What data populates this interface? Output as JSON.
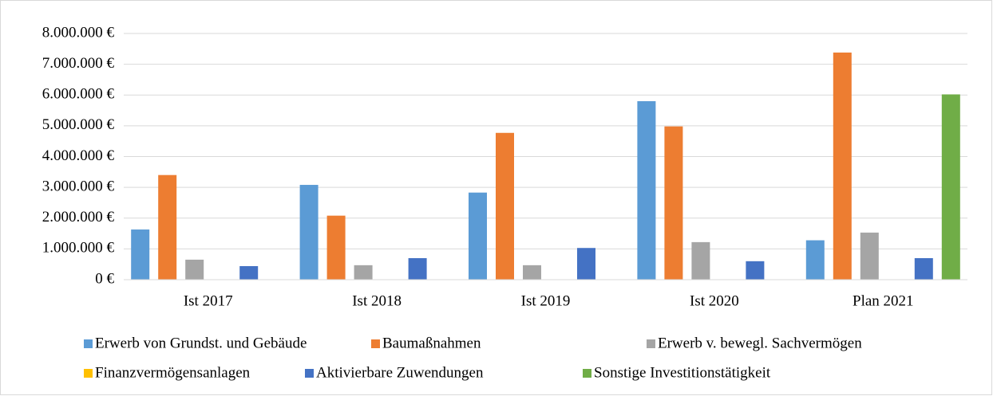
{
  "chart_data": {
    "type": "bar",
    "categories": [
      "Ist 2017",
      "Ist 2018",
      "Ist 2019",
      "Ist 2020",
      "Plan 2021"
    ],
    "series": [
      {
        "name": "Erwerb von Grundst. und Gebäude",
        "color": "#5b9bd5",
        "values": [
          1630000,
          3080000,
          2830000,
          5800000,
          1280000
        ]
      },
      {
        "name": "Baumaßnahmen",
        "color": "#ed7d31",
        "values": [
          3400000,
          2080000,
          4770000,
          4980000,
          7380000
        ]
      },
      {
        "name": "Erwerb v. bewegl. Sachvermögen",
        "color": "#a5a5a5",
        "values": [
          650000,
          470000,
          470000,
          1220000,
          1530000
        ]
      },
      {
        "name": "Finanzvermögensanlagen",
        "color": "#ffc000",
        "values": [
          0,
          0,
          0,
          0,
          0
        ]
      },
      {
        "name": "Aktivierbare Zuwendungen",
        "color": "#4472c4",
        "values": [
          440000,
          700000,
          1030000,
          600000,
          700000
        ]
      },
      {
        "name": "Sonstige Investitionstätigkeit",
        "color": "#70ad47",
        "values": [
          0,
          0,
          0,
          0,
          6020000
        ]
      }
    ],
    "ylim": [
      0,
      8000000
    ],
    "yticks": [
      {
        "value": 0,
        "label": "0 €"
      },
      {
        "value": 1000000,
        "label": "1.000.000 €"
      },
      {
        "value": 2000000,
        "label": "2.000.000 €"
      },
      {
        "value": 3000000,
        "label": "3.000.000 €"
      },
      {
        "value": 4000000,
        "label": "4.000.000 €"
      },
      {
        "value": 5000000,
        "label": "5.000.000 €"
      },
      {
        "value": 6000000,
        "label": "6.000.000 €"
      },
      {
        "value": 7000000,
        "label": "7.000.000 €"
      },
      {
        "value": 8000000,
        "label": "8.000.000 €"
      }
    ],
    "grid": true,
    "legend": "bottom"
  }
}
